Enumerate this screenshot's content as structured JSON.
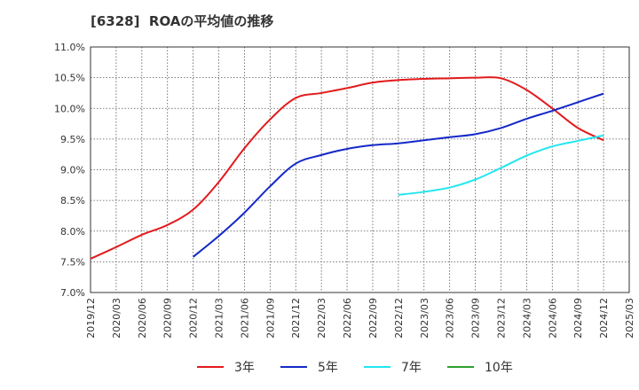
{
  "chart_data": {
    "type": "line",
    "title": "[6328]  ROAの平均値の推移",
    "xlabel": "",
    "ylabel": "",
    "ylim": [
      7.0,
      11.0
    ],
    "y_ticks": [
      "7.0%",
      "7.5%",
      "8.0%",
      "8.5%",
      "9.0%",
      "9.5%",
      "10.0%",
      "10.5%",
      "11.0%"
    ],
    "x_ticks": [
      "2019/12",
      "2020/03",
      "2020/06",
      "2020/09",
      "2020/12",
      "2021/03",
      "2021/06",
      "2021/09",
      "2021/12",
      "2022/03",
      "2022/06",
      "2022/09",
      "2022/12",
      "2023/03",
      "2023/06",
      "2023/09",
      "2023/12",
      "2024/03",
      "2024/06",
      "2024/09",
      "2024/12",
      "2025/03"
    ],
    "grid": true,
    "legend_position": "bottom",
    "series": [
      {
        "name": "3年",
        "color": "#e31a1c",
        "points": [
          [
            "2019/12",
            7.55
          ],
          [
            "2020/03",
            7.74
          ],
          [
            "2020/06",
            7.94
          ],
          [
            "2020/09",
            8.1
          ],
          [
            "2020/12",
            8.35
          ],
          [
            "2021/03",
            8.8
          ],
          [
            "2021/06",
            9.35
          ],
          [
            "2021/09",
            9.82
          ],
          [
            "2021/12",
            10.17
          ],
          [
            "2022/03",
            10.25
          ],
          [
            "2022/06",
            10.33
          ],
          [
            "2022/09",
            10.42
          ],
          [
            "2022/12",
            10.46
          ],
          [
            "2023/03",
            10.48
          ],
          [
            "2023/06",
            10.49
          ],
          [
            "2023/09",
            10.5
          ],
          [
            "2023/12",
            10.49
          ],
          [
            "2024/03",
            10.3
          ],
          [
            "2024/06",
            10.0
          ],
          [
            "2024/09",
            9.68
          ],
          [
            "2024/12",
            9.48
          ]
        ]
      },
      {
        "name": "5年",
        "color": "#1428c8",
        "points": [
          [
            "2020/12",
            7.58
          ],
          [
            "2021/03",
            7.92
          ],
          [
            "2021/06",
            8.3
          ],
          [
            "2021/09",
            8.73
          ],
          [
            "2021/12",
            9.1
          ],
          [
            "2022/03",
            9.24
          ],
          [
            "2022/06",
            9.34
          ],
          [
            "2022/09",
            9.4
          ],
          [
            "2022/12",
            9.43
          ],
          [
            "2023/03",
            9.48
          ],
          [
            "2023/06",
            9.53
          ],
          [
            "2023/09",
            9.58
          ],
          [
            "2023/12",
            9.68
          ],
          [
            "2024/03",
            9.83
          ],
          [
            "2024/06",
            9.96
          ],
          [
            "2024/09",
            10.1
          ],
          [
            "2024/12",
            10.24
          ]
        ]
      },
      {
        "name": "7年",
        "color": "#22e6f0",
        "points": [
          [
            "2022/12",
            8.59
          ],
          [
            "2023/03",
            8.64
          ],
          [
            "2023/06",
            8.71
          ],
          [
            "2023/09",
            8.84
          ],
          [
            "2023/12",
            9.03
          ],
          [
            "2024/03",
            9.23
          ],
          [
            "2024/06",
            9.38
          ],
          [
            "2024/09",
            9.47
          ],
          [
            "2024/12",
            9.56
          ]
        ]
      },
      {
        "name": "10年",
        "color": "#2ca02c",
        "points": []
      }
    ]
  }
}
